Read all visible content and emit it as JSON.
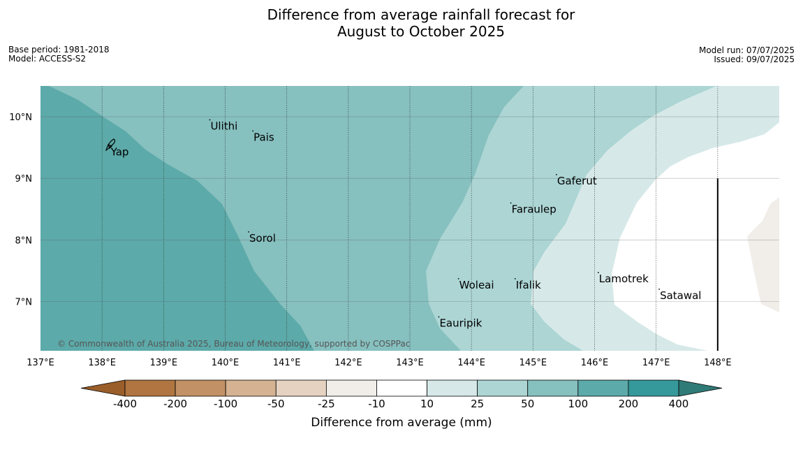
{
  "title": {
    "line1": "Difference from average rainfall forecast for",
    "line2": "August to October 2025"
  },
  "info_left": {
    "base_period": "Base period: 1981-2018",
    "model": "Model: ACCESS-S2"
  },
  "info_right": {
    "model_run": "Model run: 07/07/2025",
    "issued": "Issued: 09/07/2025"
  },
  "map": {
    "lon_range": [
      137,
      149
    ],
    "lat_range": [
      6.2,
      10.5
    ],
    "lon_ticks": [
      {
        "value": 137,
        "label": "137°E"
      },
      {
        "value": 138,
        "label": "138°E"
      },
      {
        "value": 139,
        "label": "139°E"
      },
      {
        "value": 140,
        "label": "140°E"
      },
      {
        "value": 141,
        "label": "141°E"
      },
      {
        "value": 142,
        "label": "142°E"
      },
      {
        "value": 143,
        "label": "143°E"
      },
      {
        "value": 144,
        "label": "144°E"
      },
      {
        "value": 145,
        "label": "145°E"
      },
      {
        "value": 146,
        "label": "146°E"
      },
      {
        "value": 147,
        "label": "147°E"
      },
      {
        "value": 148,
        "label": "148°E"
      }
    ],
    "lat_ticks": [
      {
        "value": 10,
        "label": "10°N"
      },
      {
        "value": 9,
        "label": "9°N"
      },
      {
        "value": 8,
        "label": "8°N"
      },
      {
        "value": 7,
        "label": "7°N"
      }
    ],
    "islands": [
      {
        "name": "Ulithi",
        "lon": 139.75,
        "lat": 9.95
      },
      {
        "name": "Pais",
        "lon": 140.45,
        "lat": 9.77
      },
      {
        "name": "Yap",
        "lon": 138.13,
        "lat": 9.53
      },
      {
        "name": "Gaferut",
        "lon": 145.38,
        "lat": 9.06
      },
      {
        "name": "Faraulep",
        "lon": 144.64,
        "lat": 8.6
      },
      {
        "name": "Sorol",
        "lon": 140.38,
        "lat": 8.13
      },
      {
        "name": "Lamotrek",
        "lon": 146.06,
        "lat": 7.47
      },
      {
        "name": "Woleai",
        "lon": 143.79,
        "lat": 7.37
      },
      {
        "name": "Ifalik",
        "lon": 144.71,
        "lat": 7.37
      },
      {
        "name": "Satawal",
        "lon": 147.05,
        "lat": 7.2
      },
      {
        "name": "Eauripik",
        "lon": 143.47,
        "lat": 6.75
      }
    ],
    "boundary_line_lon": 148.0,
    "copyright": "© Commonwealth of Australia 2025, Bureau of Meteorology, supported by COSPPac"
  },
  "colorbar": {
    "label": "Difference from average (mm)",
    "tick_labels": [
      "-400",
      "-200",
      "-100",
      "-50",
      "-25",
      "-10",
      "10",
      "25",
      "50",
      "100",
      "200",
      "400"
    ],
    "low_extend_color": "#9a5e2a",
    "high_extend_color": "#2f7b77",
    "bins": [
      {
        "color": "#b07540"
      },
      {
        "color": "#c29165"
      },
      {
        "color": "#d5b291"
      },
      {
        "color": "#e5d2c1"
      },
      {
        "color": "#f1eeea"
      },
      {
        "color": "#ffffff"
      },
      {
        "color": "#d6e9e8"
      },
      {
        "color": "#acd5d4"
      },
      {
        "color": "#86c0bf"
      },
      {
        "color": "#5caaa9"
      },
      {
        "color": "#35989a"
      }
    ]
  }
}
